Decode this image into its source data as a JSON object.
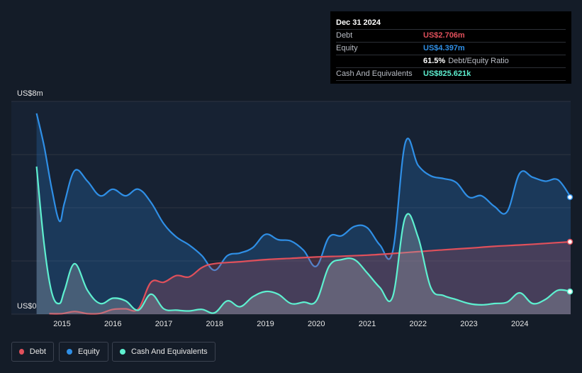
{
  "tooltip": {
    "date": "Dec 31 2024",
    "debt_label": "Debt",
    "debt_value": "US$2.706m",
    "equity_label": "Equity",
    "equity_value": "US$4.397m",
    "ratio_value": "61.5%",
    "ratio_label": "Debt/Equity Ratio",
    "cash_label": "Cash And Equivalents",
    "cash_value": "US$825.621k"
  },
  "colors": {
    "debt": "#e0505b",
    "equity": "#2f8fe6",
    "cash": "#5ef0d0",
    "background": "#141c28",
    "plot_background": "#172233",
    "grid": "#2c3442"
  },
  "legend": [
    {
      "label": "Debt",
      "color": "#e0505b"
    },
    {
      "label": "Equity",
      "color": "#2f8fe6"
    },
    {
      "label": "Cash And Equivalents",
      "color": "#5ef0d0"
    }
  ],
  "chart_data": {
    "type": "area",
    "y_top_label": "US$8m",
    "y_bottom_label": "US$0",
    "ylim": [
      0,
      8
    ],
    "xlim": [
      2014.45,
      2025.0
    ],
    "x_ticks": [
      2015,
      2016,
      2017,
      2018,
      2019,
      2020,
      2021,
      2022,
      2023,
      2024
    ],
    "x_tick_labels": [
      "2015",
      "2016",
      "2017",
      "2018",
      "2019",
      "2020",
      "2021",
      "2022",
      "2023",
      "2024"
    ],
    "y_gridlines": [
      0,
      2,
      4,
      6,
      8
    ],
    "series": [
      {
        "name": "Equity",
        "color": "#2f8fe6",
        "x": [
          2014.5,
          2014.65,
          2014.8,
          2014.95,
          2015.05,
          2015.25,
          2015.5,
          2015.75,
          2016.0,
          2016.25,
          2016.5,
          2016.75,
          2017.0,
          2017.25,
          2017.5,
          2017.75,
          2018.0,
          2018.25,
          2018.5,
          2018.75,
          2019.0,
          2019.25,
          2019.5,
          2019.75,
          2020.0,
          2020.25,
          2020.5,
          2020.75,
          2021.0,
          2021.25,
          2021.5,
          2021.75,
          2022.0,
          2022.25,
          2022.5,
          2022.75,
          2023.0,
          2023.25,
          2023.5,
          2023.75,
          2024.0,
          2024.25,
          2024.5,
          2024.75,
          2025.0
        ],
        "y": [
          7.55,
          6.3,
          4.7,
          3.5,
          4.2,
          5.4,
          5.0,
          4.45,
          4.7,
          4.45,
          4.7,
          4.2,
          3.4,
          2.9,
          2.6,
          2.2,
          1.65,
          2.2,
          2.3,
          2.5,
          3.0,
          2.8,
          2.75,
          2.4,
          1.8,
          2.9,
          2.95,
          3.3,
          3.25,
          2.6,
          2.35,
          6.45,
          5.6,
          5.2,
          5.1,
          4.95,
          4.4,
          4.45,
          4.05,
          3.85,
          5.3,
          5.15,
          5.0,
          5.05,
          4.4
        ]
      },
      {
        "name": "Debt",
        "color": "#e0505b",
        "x": [
          2014.75,
          2015.0,
          2015.25,
          2015.5,
          2015.75,
          2016.0,
          2016.25,
          2016.5,
          2016.75,
          2017.0,
          2017.25,
          2017.5,
          2017.75,
          2018.0,
          2018.5,
          2019.0,
          2019.5,
          2020.0,
          2020.5,
          2021.0,
          2021.5,
          2022.0,
          2022.5,
          2023.0,
          2023.5,
          2024.0,
          2024.5,
          2025.0
        ],
        "y": [
          0.02,
          0.02,
          0.1,
          0.02,
          0.03,
          0.18,
          0.2,
          0.2,
          1.2,
          1.2,
          1.45,
          1.4,
          1.75,
          1.9,
          1.97,
          2.05,
          2.1,
          2.15,
          2.18,
          2.22,
          2.28,
          2.35,
          2.42,
          2.48,
          2.55,
          2.6,
          2.66,
          2.72
        ]
      },
      {
        "name": "Cash And Equivalents",
        "color": "#5ef0d0",
        "x": [
          2014.5,
          2014.65,
          2014.8,
          2014.95,
          2015.05,
          2015.25,
          2015.5,
          2015.75,
          2016.0,
          2016.25,
          2016.5,
          2016.75,
          2017.0,
          2017.25,
          2017.5,
          2017.75,
          2018.0,
          2018.25,
          2018.5,
          2018.75,
          2019.0,
          2019.25,
          2019.5,
          2019.75,
          2020.0,
          2020.25,
          2020.5,
          2020.75,
          2021.0,
          2021.25,
          2021.5,
          2021.75,
          2022.0,
          2022.25,
          2022.5,
          2022.75,
          2023.0,
          2023.25,
          2023.5,
          2023.75,
          2024.0,
          2024.25,
          2024.5,
          2024.75,
          2025.0
        ],
        "y": [
          5.55,
          2.6,
          0.8,
          0.4,
          0.9,
          1.9,
          0.9,
          0.4,
          0.6,
          0.5,
          0.15,
          0.75,
          0.2,
          0.15,
          0.12,
          0.18,
          0.05,
          0.5,
          0.28,
          0.65,
          0.85,
          0.75,
          0.4,
          0.45,
          0.5,
          1.8,
          2.05,
          2.05,
          1.55,
          1.0,
          0.65,
          3.65,
          2.9,
          1.0,
          0.7,
          0.55,
          0.4,
          0.35,
          0.4,
          0.45,
          0.8,
          0.4,
          0.55,
          0.9,
          0.85
        ]
      }
    ]
  }
}
